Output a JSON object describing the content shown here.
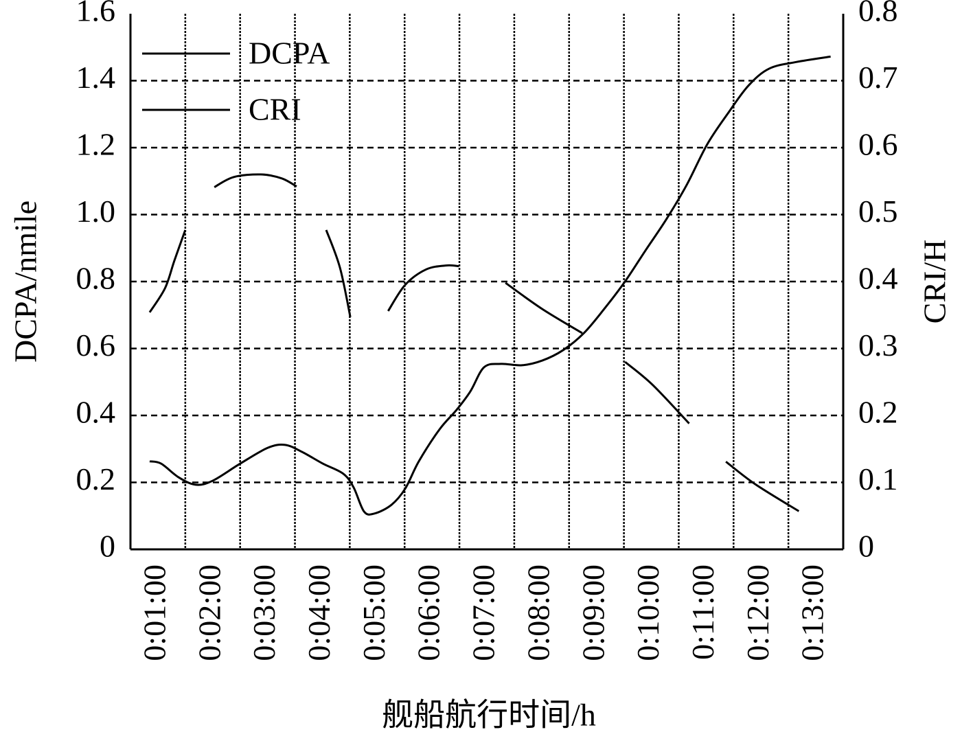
{
  "chart_data": {
    "type": "line",
    "x_label": "舰船航行时间/h",
    "y_label": "DCPA/nmile",
    "y2_label": "CRI/H",
    "xlim": [
      0.5,
      13.5
    ],
    "xticks": [
      {
        "value": 1,
        "label": "0:01:00"
      },
      {
        "value": 2,
        "label": "0:02:00"
      },
      {
        "value": 3,
        "label": "0:03:00"
      },
      {
        "value": 4,
        "label": "0:04:00"
      },
      {
        "value": 5,
        "label": "0:05:00"
      },
      {
        "value": 6,
        "label": "0:06:00"
      },
      {
        "value": 7,
        "label": "0:07:00"
      },
      {
        "value": 8,
        "label": "0:08:00"
      },
      {
        "value": 9,
        "label": "0:09:00"
      },
      {
        "value": 10,
        "label": "0:10:00"
      },
      {
        "value": 11,
        "label": "0:11:00"
      },
      {
        "value": 12,
        "label": "0:12:00"
      },
      {
        "value": 13,
        "label": "0:13:00"
      }
    ],
    "ylim": [
      0,
      1.6
    ],
    "yticks": [
      0,
      0.2,
      0.4,
      0.6,
      0.8,
      {
        "value": 1,
        "label": "1.0"
      },
      1.2,
      1.4,
      1.6
    ],
    "y2lim": [
      0,
      0.8
    ],
    "y2ticks": [
      0,
      0.1,
      0.2,
      0.3,
      0.4,
      0.5,
      0.6,
      0.7,
      0.8
    ],
    "grid": true,
    "legend": "upper left",
    "series": [
      {
        "name": "DCPA",
        "color": "#000000",
        "x": [
          0.85,
          1.06,
          1.38,
          1.69,
          2.0,
          2.5,
          3.0,
          3.32,
          3.63,
          4.01,
          4.38,
          4.57,
          4.76,
          4.95,
          5.26,
          5.51,
          5.76,
          6.14,
          6.45,
          6.7,
          6.95,
          7.26,
          7.64,
          8.01,
          8.39,
          8.77,
          9.14,
          9.52,
          9.89,
          10.27,
          10.64,
          11.02,
          11.4,
          11.77,
          12.15,
          12.65,
          13.27
        ],
        "values": [
          0.263,
          0.256,
          0.215,
          0.193,
          0.205,
          0.256,
          0.303,
          0.312,
          0.291,
          0.256,
          0.226,
          0.185,
          0.113,
          0.107,
          0.133,
          0.181,
          0.263,
          0.359,
          0.417,
          0.472,
          0.544,
          0.554,
          0.55,
          0.564,
          0.595,
          0.646,
          0.718,
          0.8,
          0.892,
          0.985,
          1.087,
          1.21,
          1.303,
          1.385,
          1.436,
          1.456,
          1.472
        ]
      },
      {
        "name": "CRI",
        "color": "#000000",
        "axis": "y2",
        "x": [
          0.85,
          1.13,
          1.3,
          1.5,
          null,
          2.03,
          2.38,
          2.88,
          3.26,
          3.53,
          null,
          4.07,
          4.32,
          4.51,
          null,
          5.2,
          5.51,
          5.89,
          6.26,
          6.49,
          null,
          7.34,
          8.01,
          8.74,
          null,
          9.52,
          10.02,
          10.69,
          null,
          11.36,
          11.9,
          12.69
        ],
        "values": [
          0.354,
          0.39,
          0.431,
          0.477,
          null,
          0.541,
          0.556,
          0.56,
          0.554,
          0.542,
          null,
          0.477,
          0.421,
          0.347,
          null,
          0.356,
          0.395,
          0.418,
          0.424,
          0.423,
          null,
          0.398,
          0.359,
          0.323,
          null,
          0.28,
          0.246,
          0.188,
          null,
          0.131,
          0.097,
          0.057
        ]
      }
    ]
  }
}
